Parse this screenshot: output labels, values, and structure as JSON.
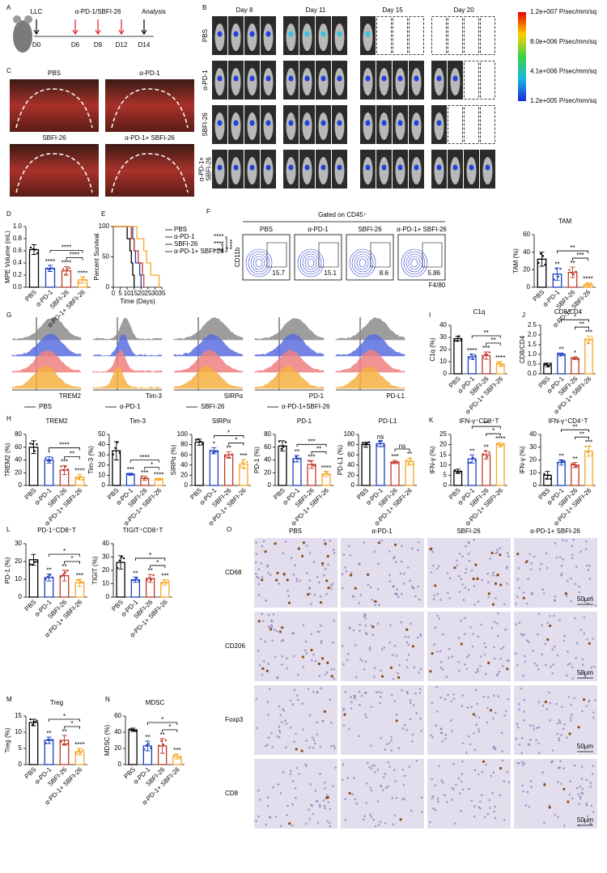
{
  "panel_labels": [
    "A",
    "B",
    "C",
    "D",
    "E",
    "F",
    "G",
    "H",
    "I",
    "J",
    "K",
    "L",
    "M",
    "N",
    "O"
  ],
  "A": {
    "cell": "LLC",
    "treatment": "α-PD-1/SBFI-26",
    "endpoint": "Analysis",
    "days": [
      "D0",
      "D6",
      "D9",
      "D12",
      "D14"
    ]
  },
  "B": {
    "days": [
      "Day 8",
      "Day 11",
      "Day 15",
      "Day 20"
    ],
    "groups": [
      [
        "PBS"
      ],
      [
        "α-PD-1"
      ],
      [
        "SBFI-26"
      ],
      [
        "α-PD-1+",
        "SBFI-26"
      ]
    ],
    "colorbar": [
      "1.2e+007 P/sec/mm/sq",
      "8.0e+006 P/sec/mm/sq",
      "4.1e+006 P/sec/mm/sq",
      "1.2e+005 P/sec/mm/sq"
    ]
  },
  "C": {
    "labels": [
      "PBS",
      "α-PD-1",
      "SBFI-26",
      "α-PD-1+ SBFI-26"
    ]
  },
  "F": {
    "gate": "Gated on CD45⁺",
    "groups": [
      "PBS",
      "α-PD-1",
      "SBFI-26",
      "α-PD-1+ SBFI-26"
    ],
    "percent": [
      15.7,
      15.1,
      8.6,
      5.86
    ],
    "xlabel": "F4/80",
    "ylabel": "CD11b"
  },
  "G": {
    "markers": [
      "TREM2",
      "Tim-3",
      "SIRPα",
      "PD-1",
      "PD-L1"
    ],
    "legend": [
      {
        "name": "PBS",
        "color": "#8c8c8c"
      },
      {
        "name": "α-PD-1",
        "color": "#5b6ee1"
      },
      {
        "name": "SBFI-26",
        "color": "#f08080"
      },
      {
        "name": "α-PD-1+SBFI-26",
        "color": "#f5b041"
      }
    ]
  },
  "O": {
    "columns": [
      "PBS",
      "α-PD-1",
      "SBFI-26",
      "α-PD-1+ SBFI-26"
    ],
    "rows": [
      "CD68",
      "CD206",
      "Foxp3",
      "CD8"
    ],
    "scale_bar": "50μm"
  },
  "chart_data": [
    {
      "type": "bar",
      "ylabel": "MPE Volume (mL)",
      "categories": [
        "PBS",
        "α-PD-1",
        "SBFI-26",
        "α-PD-1+ SBFI-26"
      ],
      "colors": [
        "#000000",
        "#1c3fbf",
        "#c0392b",
        "#f5a623"
      ],
      "values": [
        0.62,
        0.31,
        0.27,
        0.12
      ],
      "errors": [
        0.08,
        0.05,
        0.07,
        0.05
      ],
      "significance": [
        null,
        "****",
        "****",
        "****"
      ],
      "comparisons": [
        {
          "from": 1,
          "to": 3,
          "label": "****"
        },
        {
          "from": 2,
          "to": 3,
          "label": "****"
        }
      ],
      "ylim": [
        0,
        1.0
      ],
      "yticks": [
        {
          "value": 0,
          "label": "0.0"
        },
        0.2,
        0.4,
        0.6,
        0.8,
        {
          "value": 1.0,
          "label": "1.0"
        }
      ]
    },
    {
      "type": "line",
      "xlabel": "Time (Days)",
      "ylabel": "Percent Survival",
      "xlim": [
        0,
        35
      ],
      "xticks": [
        0,
        5,
        10,
        15,
        20,
        25,
        30,
        35
      ],
      "ylim": [
        0,
        100
      ],
      "yticks": [
        0,
        50,
        100
      ],
      "series": [
        {
          "name": "PBS",
          "color": "#000000",
          "significance": null,
          "x": [
            0,
            10,
            12,
            13,
            14,
            15
          ],
          "y": [
            100,
            80,
            60,
            40,
            20,
            0
          ]
        },
        {
          "name": "α-PD-1",
          "color": "#1c3fbf",
          "significance": "****",
          "x": [
            0,
            14,
            15,
            16,
            19,
            20
          ],
          "y": [
            100,
            80,
            60,
            40,
            20,
            0
          ]
        },
        {
          "name": "SBFI-26",
          "color": "#c0392b",
          "significance": "****",
          "x": [
            0,
            13,
            15,
            18,
            21,
            22
          ],
          "y": [
            100,
            80,
            60,
            40,
            20,
            0
          ]
        },
        {
          "name": "α-PD-1+ SBFI-26",
          "color": "#f5a623",
          "significance": "****",
          "x": [
            0,
            17,
            22,
            24,
            27,
            33
          ],
          "y": [
            100,
            80,
            60,
            40,
            20,
            0
          ]
        }
      ],
      "comparisons": [
        {
          "from": 1,
          "to": 3,
          "label": "****"
        },
        {
          "from": 2,
          "to": 3,
          "label": "*"
        }
      ]
    },
    {
      "type": "bar",
      "title": "TAM",
      "ylabel": "TAM (%)",
      "categories": [
        "PBS",
        "α-PD-1",
        "SBFI-26",
        "α-PD-1+ SBFI-26"
      ],
      "colors": [
        "#000000",
        "#1c3fbf",
        "#c0392b",
        "#f5a623"
      ],
      "values": [
        32,
        15,
        17,
        3
      ],
      "errors": [
        8,
        7,
        6,
        2
      ],
      "significance": [
        null,
        "**",
        "**",
        "****"
      ],
      "comparisons": [
        {
          "from": 1,
          "to": 3,
          "label": "**"
        },
        {
          "from": 2,
          "to": 3,
          "label": "***"
        }
      ],
      "ylim": [
        0,
        60
      ],
      "yticks": [
        0,
        20,
        40,
        60
      ]
    },
    {
      "type": "bar",
      "title": "C1q",
      "ylabel": "C1q (%)",
      "categories": [
        "PBS",
        "α-PD-1",
        "SBFI-26",
        "α-PD-1+ SBFI-26"
      ],
      "colors": [
        "#000000",
        "#1c3fbf",
        "#c0392b",
        "#f5a623"
      ],
      "values": [
        29,
        14,
        15,
        8
      ],
      "errors": [
        2,
        2,
        3,
        2
      ],
      "significance": [
        null,
        "****",
        "***",
        "****"
      ],
      "comparisons": [
        {
          "from": 1,
          "to": 3,
          "label": "**"
        },
        {
          "from": 2,
          "to": 3,
          "label": "**"
        }
      ],
      "ylim": [
        0,
        40
      ],
      "yticks": [
        0,
        10,
        20,
        30,
        40
      ]
    },
    {
      "type": "bar",
      "title": "CD8/CD4",
      "ylabel": "CD8/CD4",
      "categories": [
        "PBS",
        "α-PD-1",
        "SBFI-26",
        "α-PD-1+ SBFI-26"
      ],
      "colors": [
        "#000000",
        "#1c3fbf",
        "#c0392b",
        "#f5a623"
      ],
      "values": [
        0.45,
        1.0,
        0.8,
        1.75
      ],
      "errors": [
        0.1,
        0.07,
        0.07,
        0.2
      ],
      "significance": [
        null,
        "**",
        "*",
        "***"
      ],
      "comparisons": [
        {
          "from": 1,
          "to": 3,
          "label": "*"
        },
        {
          "from": 2,
          "to": 3,
          "label": "**"
        }
      ],
      "ylim": [
        0,
        2.5
      ],
      "yticks": [
        {
          "value": 0,
          "label": "0.0"
        },
        0.5,
        {
          "value": 1.0,
          "label": "1.0"
        },
        1.5,
        {
          "value": 2.0,
          "label": "2.0"
        },
        2.5
      ]
    },
    {
      "type": "bar",
      "title": "TREM2",
      "ylabel": "TREM2 (%)",
      "categories": [
        "PBS",
        "α-PD-1",
        "SBFI-26",
        "α-PD-1+ SBFI-26"
      ],
      "colors": [
        "#000000",
        "#1c3fbf",
        "#c0392b",
        "#f5a623"
      ],
      "values": [
        60,
        40,
        24,
        13
      ],
      "errors": [
        10,
        5,
        7,
        4
      ],
      "significance": [
        null,
        "*",
        "***",
        "****"
      ],
      "comparisons": [
        {
          "from": 1,
          "to": 3,
          "label": "****"
        },
        {
          "from": 2,
          "to": 3,
          "label": "**"
        }
      ],
      "ylim": [
        0,
        80
      ],
      "yticks": [
        0,
        20,
        40,
        60,
        80
      ]
    },
    {
      "type": "bar",
      "title": "Tim-3",
      "ylabel": "Tim-3 (%)",
      "categories": [
        "PBS",
        "α-PD-1",
        "SBFI-26",
        "α-PD-1+ SBFI-26"
      ],
      "colors": [
        "#000000",
        "#1c3fbf",
        "#c0392b",
        "#f5a623"
      ],
      "values": [
        34,
        11,
        7,
        6
      ],
      "errors": [
        9,
        1,
        2,
        1
      ],
      "significance": [
        null,
        "***",
        "***",
        "****"
      ],
      "comparisons": [
        {
          "from": 1,
          "to": 3,
          "label": "****"
        },
        {
          "from": 2,
          "to": 3,
          "label": "*"
        }
      ],
      "ylim": [
        0,
        50
      ],
      "yticks": [
        0,
        10,
        20,
        30,
        40,
        50
      ]
    },
    {
      "type": "bar",
      "title": "SIRPα",
      "ylabel": "SIRPα (%)",
      "categories": [
        "PBS",
        "α-PD-1",
        "SBFI-26",
        "α-PD-1+ SBFI-26"
      ],
      "colors": [
        "#000000",
        "#1c3fbf",
        "#c0392b",
        "#f5a623"
      ],
      "values": [
        85,
        68,
        60,
        42
      ],
      "errors": [
        6,
        6,
        6,
        9
      ],
      "significance": [
        null,
        "*",
        "**",
        "***"
      ],
      "comparisons": [
        {
          "from": 1,
          "to": 3,
          "label": "*"
        },
        {
          "from": 2,
          "to": 3,
          "label": "*"
        }
      ],
      "ylim": [
        0,
        100
      ],
      "yticks": [
        0,
        20,
        40,
        60,
        80,
        100
      ]
    },
    {
      "type": "bar",
      "title": "PD-1",
      "ylabel": "PD-1 (%)",
      "categories": [
        "PBS",
        "α-PD-1",
        "SBFI-26",
        "α-PD-1+ SBFI-26"
      ],
      "colors": [
        "#000000",
        "#1c3fbf",
        "#c0392b",
        "#f5a623"
      ],
      "values": [
        62,
        42,
        33,
        18
      ],
      "errors": [
        8,
        5,
        6,
        4
      ],
      "significance": [
        null,
        "**",
        "***",
        "****"
      ],
      "comparisons": [
        {
          "from": 1,
          "to": 3,
          "label": "***"
        },
        {
          "from": 2,
          "to": 3,
          "label": "**"
        }
      ],
      "ylim": [
        0,
        80
      ],
      "yticks": [
        0,
        20,
        40,
        60,
        80
      ]
    },
    {
      "type": "bar",
      "title": "PD-L1",
      "ylabel": "PD-L1 (%)",
      "categories": [
        "PBS",
        "α-PD-1",
        "SBFI-26",
        "α-PD-1+ SBFI-26"
      ],
      "colors": [
        "#000000",
        "#1c3fbf",
        "#c0392b",
        "#f5a623"
      ],
      "values": [
        80,
        82,
        46,
        47
      ],
      "errors": [
        5,
        6,
        3,
        7
      ],
      "significance": [
        null,
        "ns",
        "***",
        "**"
      ],
      "comparisons": [
        {
          "from": 2,
          "to": 3,
          "label": "ns"
        }
      ],
      "ylim": [
        0,
        100
      ],
      "yticks": [
        0,
        20,
        40,
        60,
        80,
        100
      ]
    },
    {
      "type": "bar",
      "title": "IFN-γ⁺CD8⁺T",
      "ylabel": "IFN-γ (%)",
      "categories": [
        "PBS",
        "α-PD-1",
        "SBFI-26",
        "α-PD-1+ SBFI-26"
      ],
      "colors": [
        "#000000",
        "#1c3fbf",
        "#c0392b",
        "#f5a623"
      ],
      "values": [
        7,
        13,
        15,
        20
      ],
      "errors": [
        1,
        2,
        2,
        1
      ],
      "significance": [
        null,
        "**",
        "**",
        "****"
      ],
      "comparisons": [
        {
          "from": 1,
          "to": 3,
          "label": "**"
        },
        {
          "from": 2,
          "to": 3,
          "label": "*"
        }
      ],
      "ylim": [
        0,
        25
      ],
      "yticks": [
        0,
        5,
        10,
        15,
        20,
        25
      ]
    },
    {
      "type": "bar",
      "title": "IFN-γ⁺CD4⁺T",
      "ylabel": "IFN-γ (%)",
      "categories": [
        "PBS",
        "α-PD-1",
        "SBFI-26",
        "α-PD-1+ SBFI-26"
      ],
      "colors": [
        "#000000",
        "#1c3fbf",
        "#c0392b",
        "#f5a623"
      ],
      "values": [
        8,
        18,
        16,
        27
      ],
      "errors": [
        3,
        2,
        2,
        4
      ],
      "significance": [
        null,
        "**",
        "**",
        "***"
      ],
      "comparisons": [
        {
          "from": 1,
          "to": 3,
          "label": "**"
        },
        {
          "from": 2,
          "to": 3,
          "label": "**"
        }
      ],
      "ylim": [
        0,
        40
      ],
      "yticks": [
        0,
        10,
        20,
        30,
        40
      ]
    },
    {
      "type": "bar",
      "title": "PD-1⁺CD8⁺T",
      "ylabel": "PD-1 (%)",
      "categories": [
        "PBS",
        "α-PD-1",
        "SBFI-26",
        "α-PD-1+ SBFI-26"
      ],
      "colors": [
        "#000000",
        "#1c3fbf",
        "#c0392b",
        "#f5a623"
      ],
      "values": [
        21,
        11,
        12,
        8
      ],
      "errors": [
        3,
        2,
        3,
        2
      ],
      "significance": [
        null,
        "**",
        "**",
        "***"
      ],
      "comparisons": [
        {
          "from": 1,
          "to": 3,
          "label": "*"
        },
        {
          "from": 2,
          "to": 3,
          "label": "*"
        }
      ],
      "ylim": [
        0,
        30
      ],
      "yticks": [
        0,
        10,
        20,
        30
      ]
    },
    {
      "type": "bar",
      "title": "TIGIT⁺CD8⁺T",
      "ylabel": "TIGIT (%)",
      "categories": [
        "PBS",
        "α-PD-1",
        "SBFI-26",
        "α-PD-1+ SBFI-26"
      ],
      "colors": [
        "#000000",
        "#1c3fbf",
        "#c0392b",
        "#f5a623"
      ],
      "values": [
        26,
        13,
        14,
        11
      ],
      "errors": [
        5,
        2,
        3,
        2
      ],
      "significance": [
        null,
        "**",
        "**",
        "***"
      ],
      "comparisons": [
        {
          "from": 1,
          "to": 3,
          "label": "*"
        },
        {
          "from": 2,
          "to": 3,
          "label": "*"
        }
      ],
      "ylim": [
        0,
        40
      ],
      "yticks": [
        0,
        10,
        20,
        30,
        40
      ]
    },
    {
      "type": "bar",
      "title": "Treg",
      "ylabel": "Treg (%)",
      "categories": [
        "PBS",
        "α-PD-1",
        "SBFI-26",
        "α-PD-1+ SBFI-26"
      ],
      "colors": [
        "#000000",
        "#1c3fbf",
        "#c0392b",
        "#f5a623"
      ],
      "values": [
        13,
        7.5,
        7.5,
        4
      ],
      "errors": [
        1,
        1,
        1.5,
        1
      ],
      "significance": [
        null,
        "**",
        "**",
        "****"
      ],
      "comparisons": [
        {
          "from": 1,
          "to": 3,
          "label": "*"
        },
        {
          "from": 2,
          "to": 3,
          "label": "*"
        }
      ],
      "ylim": [
        0,
        15
      ],
      "yticks": [
        0,
        5,
        10,
        15
      ]
    },
    {
      "type": "bar",
      "title": "MDSC",
      "ylabel": "MDSC (%)",
      "categories": [
        "PBS",
        "α-PD-1",
        "SBFI-26",
        "α-PD-1+ SBFI-26"
      ],
      "colors": [
        "#000000",
        "#1c3fbf",
        "#c0392b",
        "#f5a623"
      ],
      "values": [
        43,
        23,
        23,
        10
      ],
      "errors": [
        2,
        6,
        9,
        3
      ],
      "significance": [
        null,
        "**",
        "**",
        "***"
      ],
      "comparisons": [
        {
          "from": 1,
          "to": 3,
          "label": "*"
        },
        {
          "from": 2,
          "to": 3,
          "label": "*"
        }
      ],
      "ylim": [
        0,
        60
      ],
      "yticks": [
        0,
        20,
        40,
        60
      ]
    }
  ]
}
